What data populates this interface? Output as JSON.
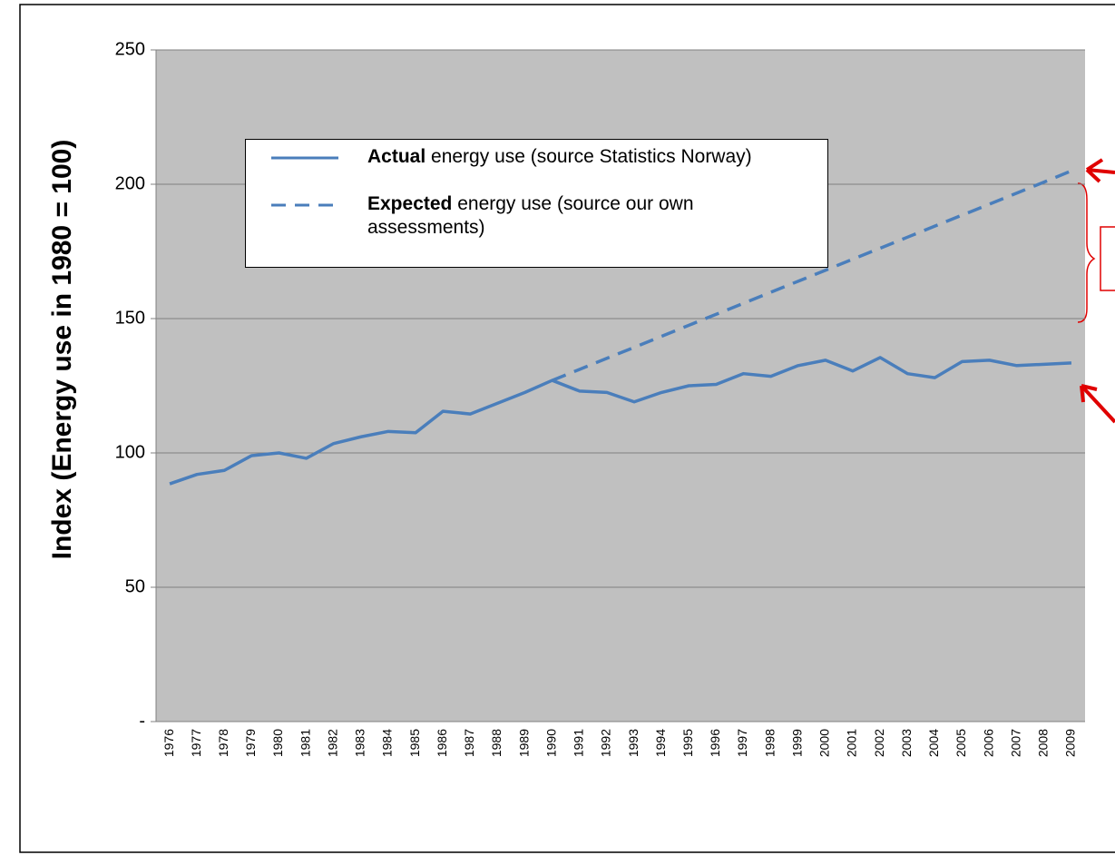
{
  "chart_data": {
    "type": "line",
    "y_label": "Index (Energy use in 1980 = 100)",
    "categories": [
      "1976",
      "1977",
      "1978",
      "1979",
      "1980",
      "1981",
      "1982",
      "1983",
      "1984",
      "1985",
      "1986",
      "1987",
      "1988",
      "1989",
      "1990",
      "1991",
      "1992",
      "1993",
      "1994",
      "1995",
      "1996",
      "1997",
      "1998",
      "1999",
      "2000",
      "2001",
      "2002",
      "2003",
      "2004",
      "2005",
      "2006",
      "2007",
      "2008",
      "2009"
    ],
    "series": [
      {
        "name": "Actual energy use (source Statistics Norway)",
        "color": "#4a7ebb",
        "dash": false,
        "values": [
          88.5,
          92,
          93.5,
          99,
          100,
          98,
          103.5,
          106,
          108,
          107.5,
          115.5,
          114.5,
          118.5,
          122.5,
          127,
          123,
          122.5,
          119,
          122.5,
          125,
          125.5,
          129.5,
          128.5,
          132.5,
          134.5,
          130.5,
          135.5,
          129.5,
          128,
          134,
          134.5,
          132.5,
          133,
          133.5
        ]
      },
      {
        "name": "Expected energy use (source our own assessments)",
        "color": "#4a7ebb",
        "dash": true,
        "values": [
          null,
          null,
          null,
          null,
          null,
          null,
          null,
          null,
          null,
          null,
          null,
          null,
          null,
          null,
          127,
          131.1,
          135.2,
          139.3,
          143.4,
          147.5,
          151.6,
          155.7,
          159.8,
          163.9,
          168,
          172.1,
          176.2,
          180.3,
          184.4,
          188.5,
          192.6,
          196.7,
          200.8,
          205
        ]
      }
    ],
    "ylim": [
      0,
      250
    ],
    "yticks": [
      {
        "value": 0,
        "label": "-"
      },
      50,
      100,
      150,
      200,
      250
    ],
    "grid": true
  }
}
